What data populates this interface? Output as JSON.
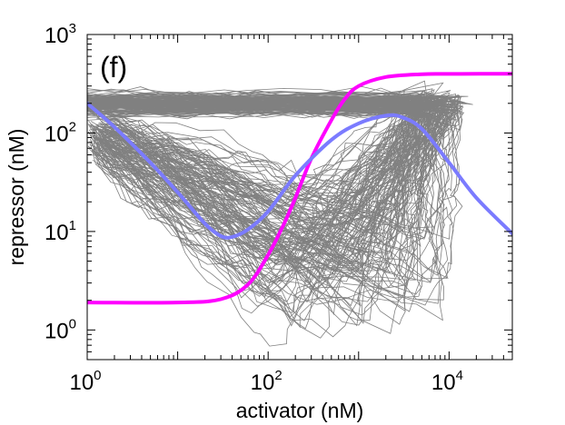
{
  "chart_data": {
    "type": "line",
    "panel_label": "(f)",
    "xlabel": "activator (nM)",
    "ylabel": "repressor (nM)",
    "x_scale": "log",
    "y_scale": "log",
    "xlim": [
      1,
      50000
    ],
    "ylim": [
      0.5,
      1000
    ],
    "x_ticks": [
      {
        "base": "10",
        "exp": "0",
        "value": 1
      },
      {
        "base": "10",
        "exp": "2",
        "value": 100
      },
      {
        "base": "10",
        "exp": "4",
        "value": 10000
      }
    ],
    "y_ticks": [
      {
        "base": "10",
        "exp": "0",
        "value": 1
      },
      {
        "base": "10",
        "exp": "1",
        "value": 10
      },
      {
        "base": "10",
        "exp": "2",
        "value": 100
      },
      {
        "base": "10",
        "exp": "3",
        "value": 1000
      }
    ],
    "grid": false,
    "legend": "none",
    "series": [
      {
        "color": "#ff00ff",
        "x": [
          1,
          10,
          30,
          60,
          100,
          150,
          200,
          300,
          500,
          700,
          1000,
          2000,
          5000,
          10000,
          50000
        ],
        "y": [
          1.9,
          1.9,
          2.05,
          2.9,
          5.8,
          12,
          22,
          55,
          135,
          220,
          300,
          370,
          395,
          398,
          400
        ]
      },
      {
        "color": "#7b7bff",
        "x": [
          1,
          2,
          5,
          10,
          20,
          30,
          40,
          60,
          100,
          200,
          500,
          1000,
          2000,
          3000,
          5000,
          10000,
          20000,
          50000
        ],
        "y": [
          200,
          115,
          50,
          25,
          12,
          9,
          8.8,
          10.5,
          16,
          37,
          85,
          125,
          150,
          145,
          110,
          50,
          22,
          9.5
        ]
      }
    ],
    "trajectory_color": "#808080"
  }
}
